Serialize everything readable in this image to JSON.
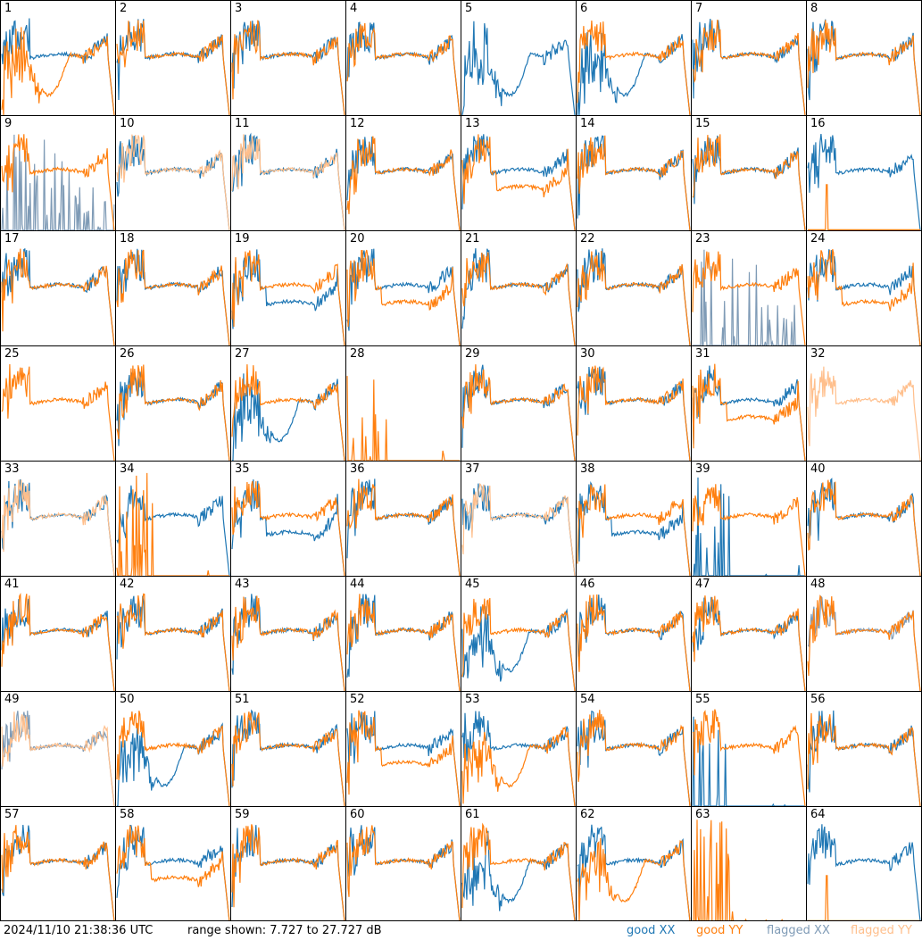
{
  "footer": {
    "timestamp": "2024/11/10 21:38:36 UTC",
    "range": "range shown: 7.727 to 27.727 dB",
    "legend": [
      {
        "label": "good XX",
        "color": "#1f77b4"
      },
      {
        "label": "good YY",
        "color": "#ff7f0e"
      },
      {
        "label": "flagged XX",
        "color": "#7f9bb6"
      },
      {
        "label": "flagged YY",
        "color": "#ffbf8c"
      }
    ]
  },
  "tiles": [
    {
      "n": "1",
      "xx": "good",
      "yy": "dip"
    },
    {
      "n": "2",
      "xx": "good",
      "yy": "good"
    },
    {
      "n": "3",
      "xx": "good",
      "yy": "good"
    },
    {
      "n": "4",
      "xx": "good",
      "yy": "good"
    },
    {
      "n": "5",
      "xx": "dip",
      "yy": "none"
    },
    {
      "n": "6",
      "xx": "dip",
      "yy": "good"
    },
    {
      "n": "7",
      "xx": "good",
      "yy": "good"
    },
    {
      "n": "8",
      "xx": "good",
      "yy": "good"
    },
    {
      "n": "9",
      "xx": "flaggedspiky",
      "yy": "good"
    },
    {
      "n": "10",
      "xx": "good",
      "yy": "flagged"
    },
    {
      "n": "11",
      "xx": "good",
      "yy": "flagged"
    },
    {
      "n": "12",
      "xx": "good",
      "yy": "good"
    },
    {
      "n": "13",
      "xx": "good",
      "yy": "low"
    },
    {
      "n": "14",
      "xx": "good",
      "yy": "good"
    },
    {
      "n": "15",
      "xx": "good",
      "yy": "good"
    },
    {
      "n": "16",
      "xx": "good",
      "yy": "flat"
    },
    {
      "n": "17",
      "xx": "good",
      "yy": "good"
    },
    {
      "n": "18",
      "xx": "good",
      "yy": "good"
    },
    {
      "n": "19",
      "xx": "low",
      "yy": "good"
    },
    {
      "n": "20",
      "xx": "good",
      "yy": "low"
    },
    {
      "n": "21",
      "xx": "good",
      "yy": "good"
    },
    {
      "n": "22",
      "xx": "good",
      "yy": "good"
    },
    {
      "n": "23",
      "xx": "flaggedspiky",
      "yy": "good"
    },
    {
      "n": "24",
      "xx": "good",
      "yy": "low"
    },
    {
      "n": "25",
      "xx": "none",
      "yy": "good"
    },
    {
      "n": "26",
      "xx": "good",
      "yy": "good"
    },
    {
      "n": "27",
      "xx": "dip",
      "yy": "good"
    },
    {
      "n": "28",
      "xx": "none",
      "yy": "spiky"
    },
    {
      "n": "29",
      "xx": "good",
      "yy": "good"
    },
    {
      "n": "30",
      "xx": "good",
      "yy": "good"
    },
    {
      "n": "31",
      "xx": "good",
      "yy": "low"
    },
    {
      "n": "32",
      "xx": "none",
      "yy": "flagged"
    },
    {
      "n": "33",
      "xx": "good",
      "yy": "flagged"
    },
    {
      "n": "34",
      "xx": "good",
      "yy": "spiky"
    },
    {
      "n": "35",
      "xx": "low",
      "yy": "good"
    },
    {
      "n": "36",
      "xx": "good",
      "yy": "good"
    },
    {
      "n": "37",
      "xx": "good",
      "yy": "flagged"
    },
    {
      "n": "38",
      "xx": "low",
      "yy": "good"
    },
    {
      "n": "39",
      "xx": "spiky",
      "yy": "good"
    },
    {
      "n": "40",
      "xx": "good",
      "yy": "good"
    },
    {
      "n": "41",
      "xx": "good",
      "yy": "good"
    },
    {
      "n": "42",
      "xx": "good",
      "yy": "good"
    },
    {
      "n": "43",
      "xx": "good",
      "yy": "good"
    },
    {
      "n": "44",
      "xx": "good",
      "yy": "good"
    },
    {
      "n": "45",
      "xx": "dip",
      "yy": "good"
    },
    {
      "n": "46",
      "xx": "good",
      "yy": "good"
    },
    {
      "n": "47",
      "xx": "good",
      "yy": "good"
    },
    {
      "n": "48",
      "xx": "flagged",
      "yy": "good"
    },
    {
      "n": "49",
      "xx": "flagged",
      "yy": "flagged"
    },
    {
      "n": "50",
      "xx": "dip",
      "yy": "good"
    },
    {
      "n": "51",
      "xx": "good",
      "yy": "good"
    },
    {
      "n": "52",
      "xx": "good",
      "yy": "low"
    },
    {
      "n": "53",
      "xx": "good",
      "yy": "dip"
    },
    {
      "n": "54",
      "xx": "good",
      "yy": "good"
    },
    {
      "n": "55",
      "xx": "spiky",
      "yy": "good"
    },
    {
      "n": "56",
      "xx": "good",
      "yy": "good"
    },
    {
      "n": "57",
      "xx": "good",
      "yy": "good"
    },
    {
      "n": "58",
      "xx": "good",
      "yy": "low"
    },
    {
      "n": "59",
      "xx": "good",
      "yy": "good"
    },
    {
      "n": "60",
      "xx": "good",
      "yy": "good"
    },
    {
      "n": "61",
      "xx": "dip",
      "yy": "good"
    },
    {
      "n": "62",
      "xx": "good",
      "yy": "dip"
    },
    {
      "n": "63",
      "xx": "none",
      "yy": "spiky"
    },
    {
      "n": "64",
      "xx": "good",
      "yy": "flat"
    }
  ]
}
